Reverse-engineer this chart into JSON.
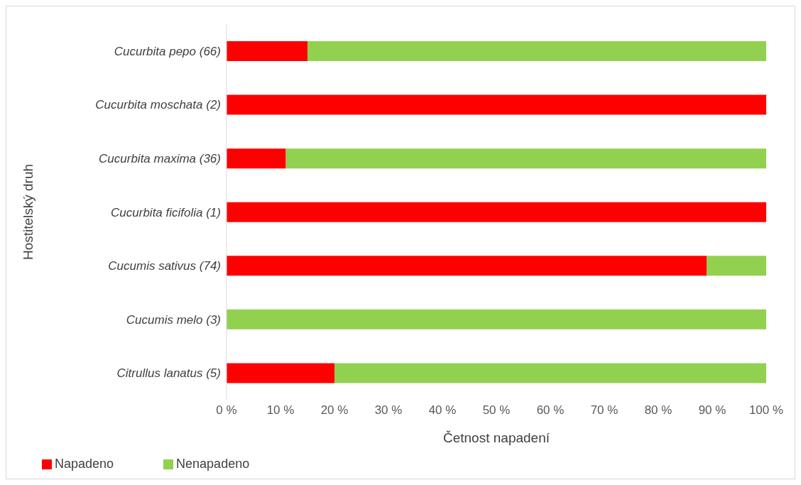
{
  "chart_data": {
    "type": "bar",
    "orientation": "horizontal",
    "stacked": true,
    "xlabel": "Četnost  napadení",
    "ylabel": "Hostitelský druh",
    "categories": [
      "Cucurbita pepo (66)",
      "Cucurbita moschata (2)",
      "Cucurbita maxima (36)",
      "Cucurbita ficifolia (1)",
      "Cucumis sativus (74)",
      "Cucumis melo (3)",
      "Citrullus lanatus (5)"
    ],
    "series": [
      {
        "name": "Napadeno",
        "color": "#ff0000",
        "values": [
          15,
          100,
          11,
          100,
          89,
          0,
          20
        ]
      },
      {
        "name": "Nenapadeno",
        "color": "#92d050",
        "values": [
          85,
          0,
          89,
          0,
          11,
          100,
          80
        ]
      }
    ],
    "xlim": [
      0,
      100
    ],
    "xticks": [
      {
        "value": 0,
        "label": "0 %"
      },
      {
        "value": 10,
        "label": "10 %"
      },
      {
        "value": 20,
        "label": "20 %"
      },
      {
        "value": 30,
        "label": "30 %"
      },
      {
        "value": 40,
        "label": "40 %"
      },
      {
        "value": 50,
        "label": "50 %"
      },
      {
        "value": 60,
        "label": "60 %"
      },
      {
        "value": 70,
        "label": "70 %"
      },
      {
        "value": 80,
        "label": "80 %"
      },
      {
        "value": 90,
        "label": "90 %"
      },
      {
        "value": 100,
        "label": "100 %"
      }
    ],
    "grid": false,
    "legend": "bottom left"
  }
}
